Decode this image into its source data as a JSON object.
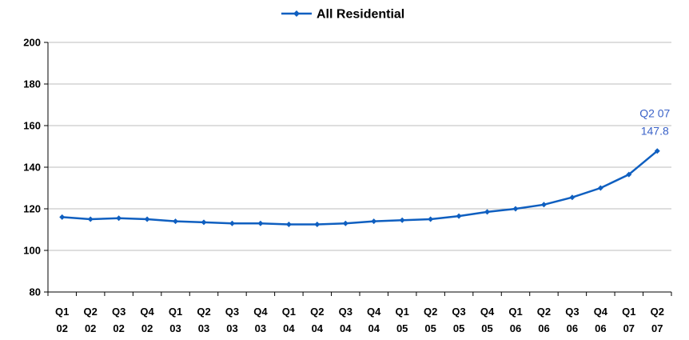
{
  "chart_data": {
    "type": "line",
    "categories": [
      [
        "Q1",
        "02"
      ],
      [
        "Q2",
        "02"
      ],
      [
        "Q3",
        "02"
      ],
      [
        "Q4",
        "02"
      ],
      [
        "Q1",
        "03"
      ],
      [
        "Q2",
        "03"
      ],
      [
        "Q3",
        "03"
      ],
      [
        "Q4",
        "03"
      ],
      [
        "Q1",
        "04"
      ],
      [
        "Q2",
        "04"
      ],
      [
        "Q3",
        "04"
      ],
      [
        "Q4",
        "04"
      ],
      [
        "Q1",
        "05"
      ],
      [
        "Q2",
        "05"
      ],
      [
        "Q3",
        "05"
      ],
      [
        "Q4",
        "05"
      ],
      [
        "Q1",
        "06"
      ],
      [
        "Q2",
        "06"
      ],
      [
        "Q3",
        "06"
      ],
      [
        "Q4",
        "06"
      ],
      [
        "Q1",
        "07"
      ],
      [
        "Q2",
        "07"
      ]
    ],
    "series": [
      {
        "name": "All Residential",
        "color": "#0f5fc0",
        "values": [
          116,
          115,
          115.5,
          115,
          114,
          113.5,
          113,
          113,
          112.5,
          112.5,
          113,
          114,
          114.5,
          115,
          116.5,
          118.5,
          120,
          122,
          125.5,
          130,
          136.5,
          147.8
        ]
      }
    ],
    "ylim": [
      80,
      200
    ],
    "yticks": [
      80,
      100,
      120,
      140,
      160,
      180,
      200
    ],
    "grid": true,
    "legend_position": "top-center",
    "annotation": {
      "point_index": 21,
      "line1": "Q2 07",
      "line2": "147.8",
      "color": "#3a62c8"
    }
  }
}
